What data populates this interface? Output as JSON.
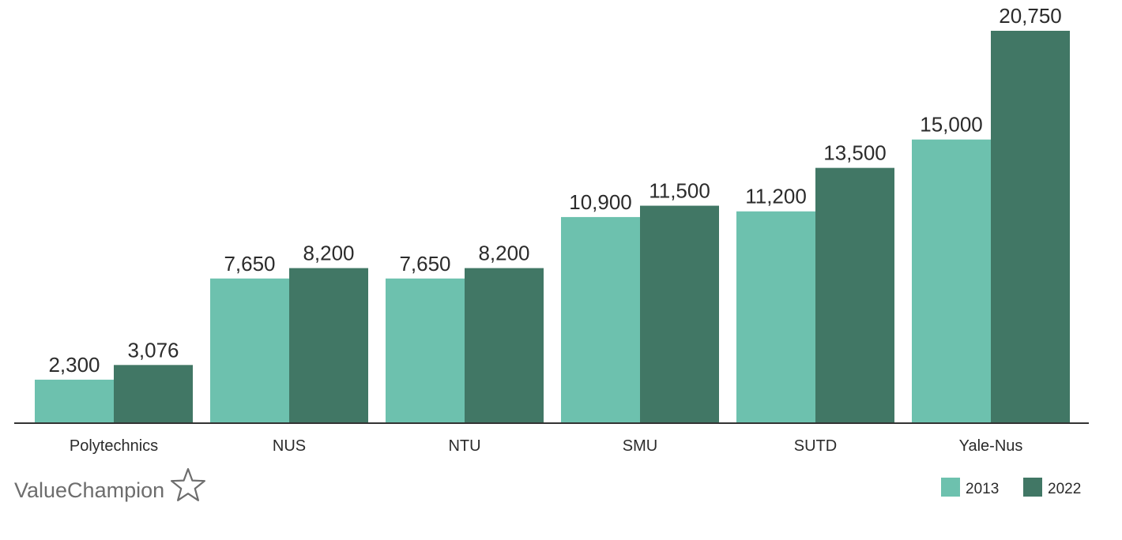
{
  "brand": {
    "name": "ValueChampion",
    "logo_icon": "star-outline-icon"
  },
  "chart_data": {
    "type": "bar",
    "categories": [
      "Polytechnics",
      "NUS",
      "NTU",
      "SMU",
      "SUTD",
      "Yale-Nus"
    ],
    "series": [
      {
        "name": "2013",
        "color": "#6dc1ae",
        "values": [
          2300,
          7650,
          7650,
          10900,
          11200,
          15000
        ],
        "labels": [
          "2,300",
          "7,650",
          "7,650",
          "10,900",
          "11,200",
          "15,000"
        ]
      },
      {
        "name": "2022",
        "color": "#417765",
        "values": [
          3076,
          8200,
          8200,
          11500,
          13500,
          20750
        ],
        "labels": [
          "3,076",
          "8,200",
          "8,200",
          "11,500",
          "13,500",
          "20,750"
        ]
      }
    ],
    "title": "",
    "xlabel": "",
    "ylabel": "",
    "ylim": [
      0,
      20750
    ],
    "grid": false,
    "legend": "bottom-right",
    "axis_color": "#333333"
  }
}
